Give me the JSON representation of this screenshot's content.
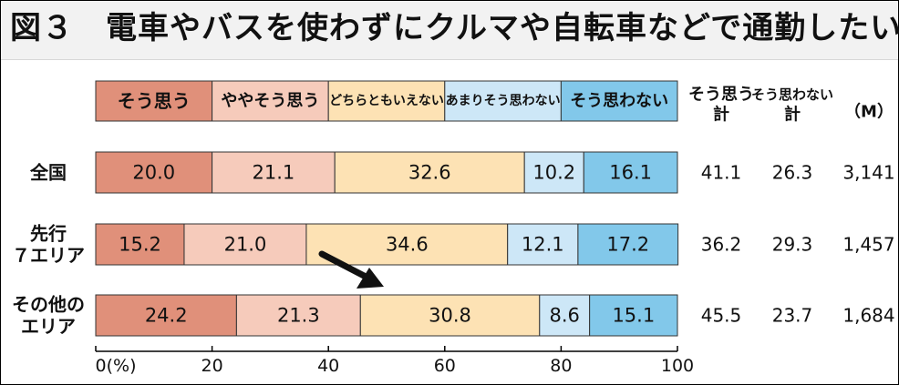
{
  "title": "図３　電車やバスを使わずにクルマや自転車などで通勤したい",
  "chart_data": {
    "type": "bar",
    "stacked": true,
    "orientation": "horizontal",
    "categories": [
      [
        "全国"
      ],
      [
        "先行",
        "７エリア"
      ],
      [
        "その他の",
        "エリア"
      ]
    ],
    "series": [
      {
        "name": "そう思う",
        "color": "#e0907a",
        "values": [
          20.0,
          15.2,
          24.2
        ]
      },
      {
        "name": "ややそう思う",
        "color": "#f6cbbb",
        "values": [
          21.1,
          21.0,
          21.3
        ]
      },
      {
        "name": "どちらともいえない",
        "color": "#fde2b4",
        "values": [
          32.6,
          34.6,
          30.8
        ]
      },
      {
        "name": "あまりそう思わない",
        "color": "#cde7f7",
        "values": [
          10.2,
          12.1,
          8.6
        ]
      },
      {
        "name": "そう思わない",
        "color": "#82c8ea",
        "values": [
          16.1,
          17.2,
          15.1
        ]
      }
    ],
    "xlim": [
      0,
      100
    ],
    "xticks": [
      {
        "value": 0,
        "label": "0(%)"
      },
      {
        "value": 20,
        "label": "20"
      },
      {
        "value": 40,
        "label": "40"
      },
      {
        "value": 60,
        "label": "60"
      },
      {
        "value": 80,
        "label": "80"
      },
      {
        "value": 100,
        "label": "100"
      }
    ],
    "summary_headers": [
      [
        "そう思う",
        "計"
      ],
      [
        "そう思わない",
        "計"
      ],
      [
        "（M）"
      ]
    ],
    "summary_values": [
      [
        "41.1",
        "26.3",
        "3,141"
      ],
      [
        "36.2",
        "29.3",
        "1,457"
      ],
      [
        "45.5",
        "23.7",
        "1,684"
      ]
    ]
  }
}
